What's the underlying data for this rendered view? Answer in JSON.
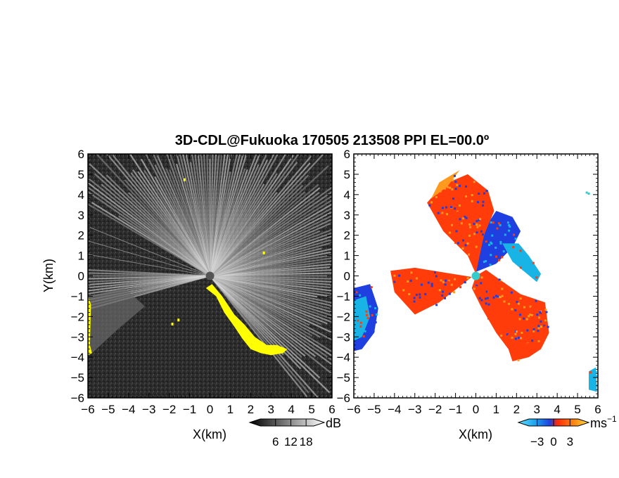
{
  "title": "3D-CDL@Fukuoka 170505 213508 PPI EL=00.0º",
  "colors": {
    "background": "#ffffff",
    "intensity_bg": "#2a2a2a",
    "intensity_fan": "#d2d2d2",
    "intensity_feature": "#ffff00",
    "velocity_negative": "#1f3fe0",
    "velocity_light_negative": "#19b4e6",
    "velocity_positive": "#ff3c0a",
    "velocity_light_positive": "#ff9a1e",
    "radar_site": "#33cccc"
  },
  "chart_data": [
    {
      "type": "heatmap",
      "name": "intensity-ppi",
      "xlabel": "X(km)",
      "ylabel": "Y(km)",
      "xlim": [
        -6,
        6
      ],
      "ylim": [
        -6,
        6
      ],
      "xticks": [
        "−6",
        "−5",
        "−4",
        "−3",
        "−2",
        "−1",
        "0",
        "1",
        "2",
        "3",
        "4",
        "5",
        "6"
      ],
      "yticks": [
        "6",
        "5",
        "4",
        "3",
        "2",
        "1",
        "0",
        "−1",
        "−2",
        "−3",
        "−4",
        "−5",
        "−6"
      ],
      "colorbar": {
        "unit": "dB",
        "ticks": [
          "6",
          "12",
          "18"
        ],
        "range": [
          0,
          21
        ]
      },
      "features": [
        {
          "label": "yellow-band",
          "points": [
            [
              -0.2,
              -0.6
            ],
            [
              0.3,
              -1.0
            ],
            [
              0.7,
              -1.8
            ],
            [
              1.2,
              -2.5
            ],
            [
              1.6,
              -3.1
            ],
            [
              2.0,
              -3.6
            ],
            [
              2.5,
              -3.8
            ],
            [
              3.0,
              -3.9
            ],
            [
              3.6,
              -3.8
            ],
            [
              3.8,
              -3.6
            ],
            [
              3.3,
              -3.4
            ],
            [
              2.8,
              -3.4
            ],
            [
              2.2,
              -3.0
            ],
            [
              1.7,
              -2.4
            ],
            [
              1.2,
              -1.9
            ],
            [
              0.6,
              -1.0
            ],
            [
              0.1,
              -0.4
            ]
          ]
        },
        {
          "label": "yellow-west",
          "points": [
            [
              -6.0,
              -1.0
            ],
            [
              -5.85,
              -1.4
            ],
            [
              -5.9,
              -3.4
            ],
            [
              -5.8,
              -3.8
            ],
            [
              -6.0,
              -3.9
            ]
          ]
        }
      ]
    },
    {
      "type": "heatmap",
      "name": "velocity-ppi",
      "xlabel": "X(km)",
      "ylabel": "",
      "xlim": [
        -6,
        6
      ],
      "ylim": [
        -6,
        6
      ],
      "xticks": [
        "−6",
        "−5",
        "−4",
        "−3",
        "−2",
        "−1",
        "0",
        "1",
        "2",
        "3",
        "4",
        "5",
        "6"
      ],
      "yticks": [
        "6",
        "5",
        "4",
        "3",
        "2",
        "1",
        "0",
        "−1",
        "−2",
        "−3",
        "−4",
        "−5",
        "−6"
      ],
      "colorbar": {
        "unit": "ms",
        "unit_sup": "−1",
        "ticks": [
          "−3",
          "0",
          "3"
        ],
        "range": [
          -4.5,
          4.5
        ]
      },
      "regions": [
        {
          "label": "positive-main",
          "value": 3,
          "points": [
            [
              0,
              0
            ],
            [
              0.5,
              0.3
            ],
            [
              1.2,
              -0.2
            ],
            [
              2.2,
              -0.9
            ],
            [
              3.4,
              -1.3
            ],
            [
              3.6,
              -2.8
            ],
            [
              3.2,
              -3.6
            ],
            [
              2.6,
              -4.0
            ],
            [
              1.8,
              -4.2
            ],
            [
              1.6,
              -3.6
            ],
            [
              1.0,
              -2.8
            ],
            [
              0.3,
              -1.6
            ],
            [
              -0.2,
              -0.6
            ]
          ]
        },
        {
          "label": "negative-core",
          "value": -3,
          "points": [
            [
              0,
              0.2
            ],
            [
              0.2,
              1.4
            ],
            [
              0.6,
              2.6
            ],
            [
              1.0,
              3.2
            ],
            [
              1.8,
              2.9
            ],
            [
              2.2,
              2.2
            ],
            [
              1.8,
              1.4
            ],
            [
              1.0,
              0.6
            ]
          ]
        },
        {
          "label": "light-negative-ne",
          "value": -2,
          "points": [
            [
              1.3,
              1.6
            ],
            [
              2.1,
              1.6
            ],
            [
              2.6,
              1.0
            ],
            [
              3.2,
              0.1
            ],
            [
              3.0,
              -0.3
            ],
            [
              2.4,
              0.2
            ],
            [
              1.8,
              0.7
            ]
          ]
        },
        {
          "label": "positive-north",
          "value": 3,
          "points": [
            [
              0,
              0.1
            ],
            [
              -0.4,
              1.0
            ],
            [
              -1.6,
              2.2
            ],
            [
              -2.4,
              3.6
            ],
            [
              -1.6,
              4.5
            ],
            [
              -0.4,
              5.0
            ],
            [
              0.6,
              4.2
            ],
            [
              0.9,
              3.2
            ],
            [
              0.4,
              2.0
            ]
          ]
        },
        {
          "label": "light-positive-north",
          "value": 2,
          "points": [
            [
              -2.2,
              3.8
            ],
            [
              -1.8,
              4.6
            ],
            [
              -0.8,
              5.2
            ],
            [
              -1.4,
              4.4
            ]
          ]
        },
        {
          "label": "positive-west",
          "value": 3,
          "points": [
            [
              -0.2,
              -0.05
            ],
            [
              -3.0,
              0.4
            ],
            [
              -4.2,
              0.25
            ],
            [
              -4.0,
              -0.8
            ],
            [
              -3.0,
              -1.9
            ],
            [
              -1.8,
              -1.3
            ]
          ]
        },
        {
          "label": "negative-west",
          "value": -3,
          "points": [
            [
              -6.0,
              -0.6
            ],
            [
              -5.2,
              -0.4
            ],
            [
              -4.8,
              -1.6
            ],
            [
              -5.0,
              -2.8
            ],
            [
              -5.6,
              -3.6
            ],
            [
              -6.0,
              -3.7
            ]
          ]
        },
        {
          "label": "light-negative-west",
          "value": -2,
          "points": [
            [
              -6.0,
              -1.2
            ],
            [
              -5.4,
              -1.0
            ],
            [
              -5.2,
              -2.0
            ],
            [
              -5.6,
              -3.0
            ],
            [
              -6.0,
              -3.2
            ]
          ]
        },
        {
          "label": "light-negative-se",
          "value": -2,
          "points": [
            [
              5.55,
              -4.7
            ],
            [
              5.9,
              -4.5
            ],
            [
              5.95,
              -5.7
            ],
            [
              5.55,
              -5.6
            ]
          ]
        }
      ]
    }
  ]
}
